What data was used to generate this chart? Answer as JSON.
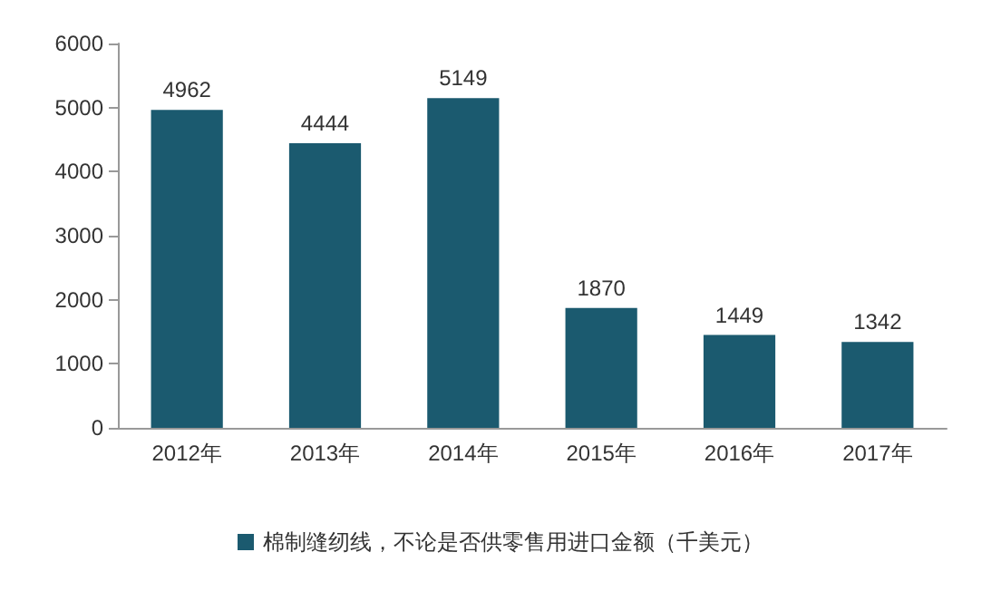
{
  "chart_data": {
    "type": "bar",
    "categories": [
      "2012年",
      "2013年",
      "2014年",
      "2015年",
      "2016年",
      "2017年"
    ],
    "series": [
      {
        "name": "棉制缝纫线，不论是否供零售用进口金额（千美元）",
        "color": "#1b5a6f",
        "values": [
          4962,
          4444,
          5149,
          1870,
          1449,
          1342
        ]
      }
    ],
    "ylim": [
      0,
      6000
    ],
    "yticks": [
      0,
      1000,
      2000,
      3000,
      4000,
      5000,
      6000
    ],
    "grid": false,
    "legend": "bottom",
    "data_labels": true
  }
}
